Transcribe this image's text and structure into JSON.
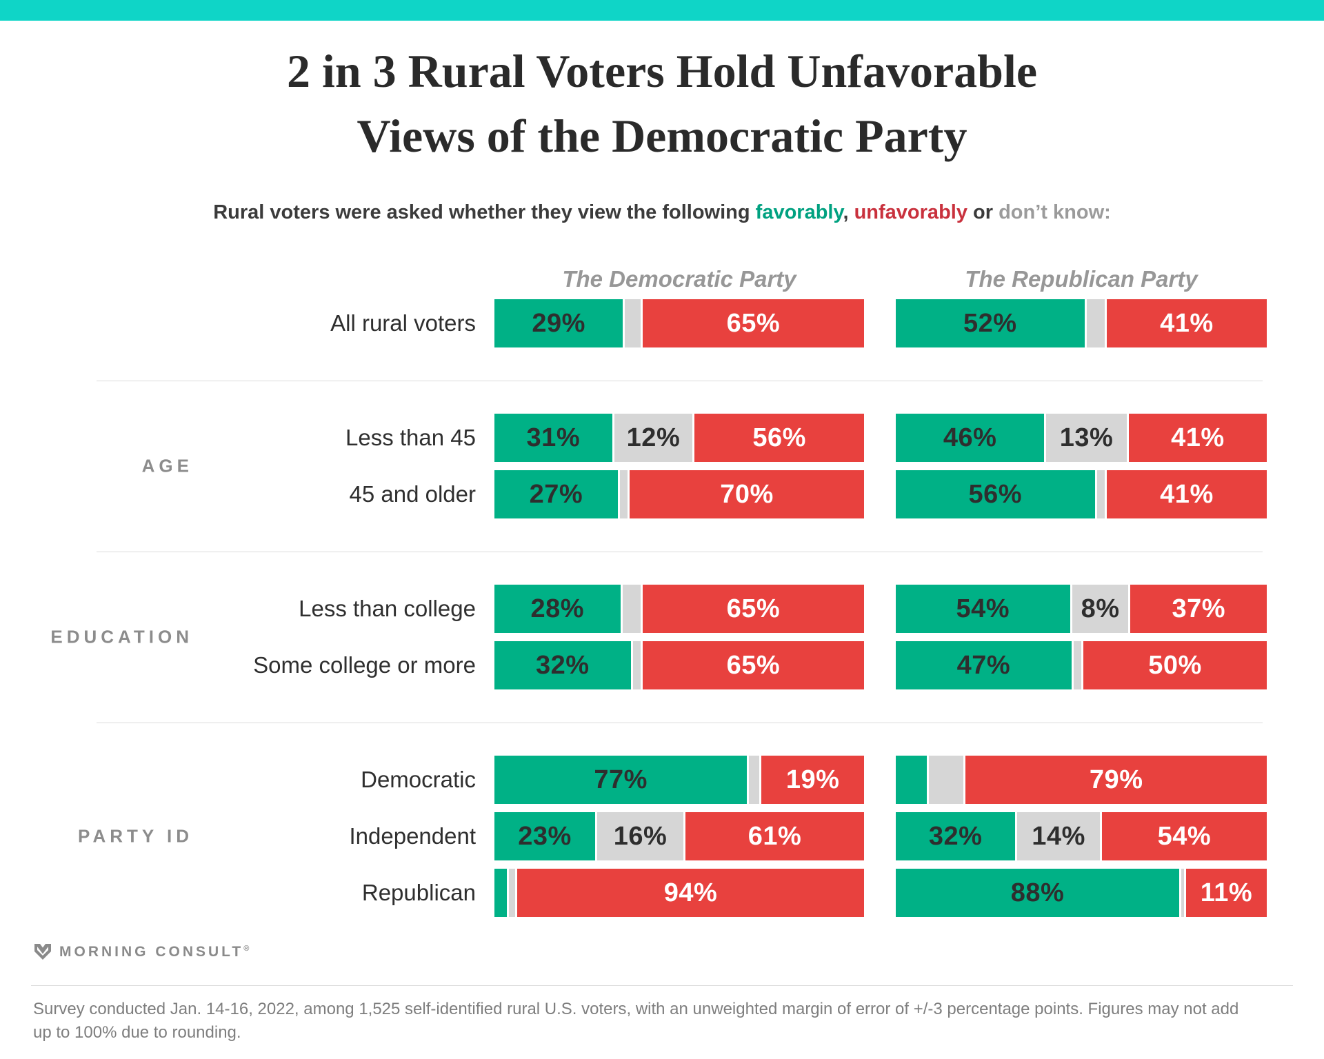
{
  "page": {
    "title_line1": "2 in 3 Rural Voters Hold Unfavorable",
    "title_line2": "Views of the Democratic Party",
    "subtitle": {
      "prefix": "Rural voters were asked whether they view the following ",
      "favorably": "favorably",
      "comma": ", ",
      "unfavorably": "unfavorably",
      "or_text": " or ",
      "dont_know": "don’t know:"
    },
    "footer": {
      "brand": "MORNING CONSULT",
      "registered_mark": "®",
      "note": "Survey conducted Jan. 14-16, 2022, among 1,525 self-identified rural U.S. voters, with an unweighted margin of error of +/-3 percentage points. Figures may not add up to 100% due to rounding."
    }
  },
  "chart_data": {
    "type": "bar",
    "orientation": "horizontal-stacked",
    "unit": "%",
    "columns": [
      "The Democratic Party",
      "The Republican Party"
    ],
    "series_keys": [
      "favorable",
      "dont_know",
      "unfavorable"
    ],
    "series_names": [
      "Favorably",
      "Don’t know",
      "Unfavorably"
    ],
    "colors": {
      "favorable": "#00B186",
      "dont_know": "#D6D6D6",
      "unfavorable": "#E8413E",
      "accent_teal": "#0FD5C7"
    },
    "sections": [
      {
        "label": "",
        "rows": [
          {
            "label": "All rural voters",
            "dem": {
              "favorable": 29,
              "dont_know": 6,
              "unfavorable": 65,
              "labels": {
                "favorable": "29%",
                "dont_know": "",
                "unfavorable": "65%"
              }
            },
            "rep": {
              "favorable": 52,
              "dont_know": 7,
              "unfavorable": 41,
              "labels": {
                "favorable": "52%",
                "dont_know": "",
                "unfavorable": "41%"
              }
            }
          }
        ]
      },
      {
        "label": "AGE",
        "rows": [
          {
            "label": "Less than 45",
            "dem": {
              "favorable": 31,
              "dont_know": 12,
              "unfavorable": 56,
              "labels": {
                "favorable": "31%",
                "dont_know": "12%",
                "unfavorable": "56%"
              }
            },
            "rep": {
              "favorable": 46,
              "dont_know": 13,
              "unfavorable": 41,
              "labels": {
                "favorable": "46%",
                "dont_know": "13%",
                "unfavorable": "41%"
              }
            }
          },
          {
            "label": "45 and older",
            "dem": {
              "favorable": 27,
              "dont_know": 3,
              "unfavorable": 70,
              "labels": {
                "favorable": "27%",
                "dont_know": "",
                "unfavorable": "70%"
              }
            },
            "rep": {
              "favorable": 56,
              "dont_know": 3,
              "unfavorable": 41,
              "labels": {
                "favorable": "56%",
                "dont_know": "",
                "unfavorable": "41%"
              }
            }
          }
        ]
      },
      {
        "label": "EDUCATION",
        "rows": [
          {
            "label": "Less than college",
            "dem": {
              "favorable": 28,
              "dont_know": 7,
              "unfavorable": 65,
              "labels": {
                "favorable": "28%",
                "dont_know": "",
                "unfavorable": "65%"
              }
            },
            "rep": {
              "favorable": 54,
              "dont_know": 8,
              "unfavorable": 37,
              "labels": {
                "favorable": "54%",
                "dont_know": "8%",
                "unfavorable": "37%"
              }
            }
          },
          {
            "label": "Some college or more",
            "dem": {
              "favorable": 32,
              "dont_know": 3,
              "unfavorable": 65,
              "labels": {
                "favorable": "32%",
                "dont_know": "",
                "unfavorable": "65%"
              }
            },
            "rep": {
              "favorable": 47,
              "dont_know": 3,
              "unfavorable": 50,
              "labels": {
                "favorable": "47%",
                "dont_know": "",
                "unfavorable": "50%"
              }
            }
          }
        ]
      },
      {
        "label": "PARTY ID",
        "rows": [
          {
            "label": "Democratic",
            "dem": {
              "favorable": 77,
              "dont_know": 4,
              "unfavorable": 19,
              "labels": {
                "favorable": "77%",
                "dont_know": "",
                "unfavorable": "19%"
              }
            },
            "rep": {
              "favorable": 10,
              "dont_know": 11,
              "unfavorable": 79,
              "labels": {
                "favorable": "",
                "dont_know": "",
                "unfavorable": "79%"
              }
            }
          },
          {
            "label": "Independent",
            "dem": {
              "favorable": 23,
              "dont_know": 16,
              "unfavorable": 61,
              "labels": {
                "favorable": "23%",
                "dont_know": "16%",
                "unfavorable": "61%"
              }
            },
            "rep": {
              "favorable": 32,
              "dont_know": 14,
              "unfavorable": 54,
              "labels": {
                "favorable": "32%",
                "dont_know": "14%",
                "unfavorable": "54%"
              }
            }
          },
          {
            "label": "Republican",
            "dem": {
              "favorable": 4,
              "dont_know": 2,
              "unfavorable": 94,
              "labels": {
                "favorable": "",
                "dont_know": "",
                "unfavorable": "94%"
              }
            },
            "rep": {
              "favorable": 88,
              "dont_know": 1,
              "unfavorable": 11,
              "labels": {
                "favorable": "88%",
                "dont_know": "",
                "unfavorable": "11%"
              }
            }
          }
        ]
      }
    ]
  }
}
